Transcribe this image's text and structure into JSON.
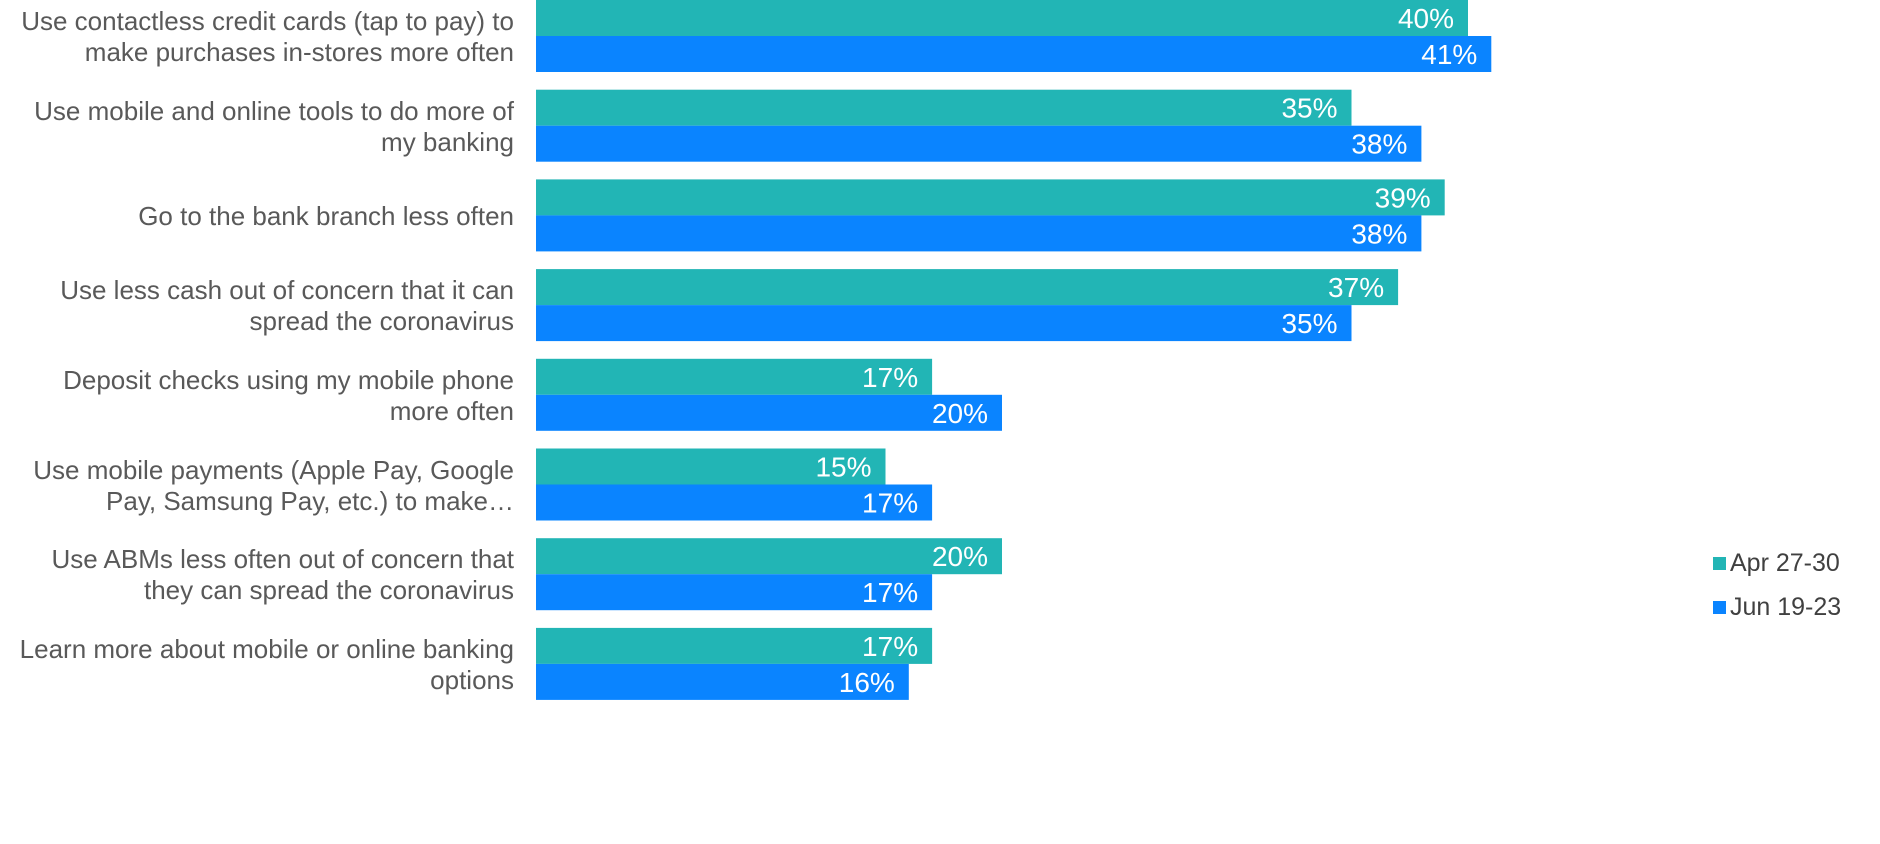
{
  "chart_data": {
    "type": "bar",
    "orientation": "horizontal",
    "categories": [
      "Use contactless credit cards (tap to pay) to\nmake purchases in-stores more often",
      "Use mobile and online tools to do more of\nmy banking",
      "Go to the bank branch less often",
      "Use less cash out of concern that it can\nspread the coronavirus",
      "Deposit checks using my mobile phone\nmore often",
      "Use mobile payments (Apple Pay, Google\nPay, Samsung Pay, etc.) to make…",
      "Use ABMs less often out of concern that\nthey can spread the coronavirus",
      "Learn more about mobile or online banking\noptions"
    ],
    "series": [
      {
        "name": "Apr 27-30",
        "color": "#22B5B5",
        "values": [
          40,
          35,
          39,
          37,
          17,
          15,
          20,
          17
        ]
      },
      {
        "name": "Jun 19-23",
        "color": "#0A84FF",
        "values": [
          41,
          38,
          38,
          35,
          20,
          17,
          17,
          16
        ]
      }
    ],
    "value_labels": [
      [
        "40%",
        "35%",
        "39%",
        "37%",
        "17%",
        "15%",
        "20%",
        "17%"
      ],
      [
        "41%",
        "38%",
        "38%",
        "35%",
        "20%",
        "17%",
        "17%",
        "16%"
      ]
    ],
    "legend_position": "right",
    "grid": false
  }
}
